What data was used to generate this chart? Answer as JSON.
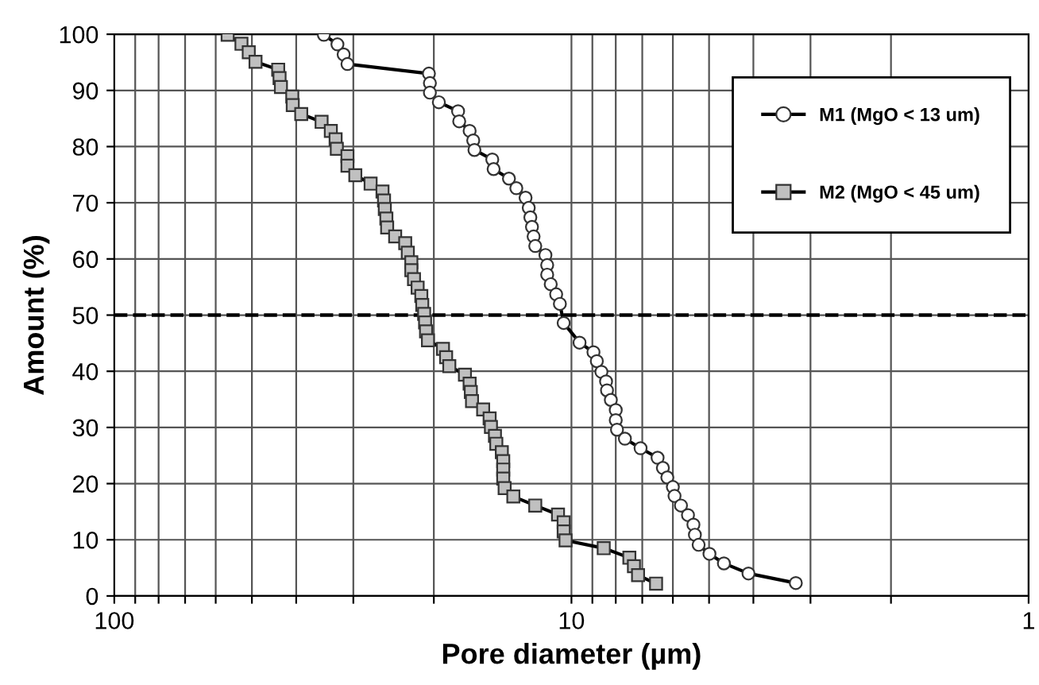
{
  "chart_data": {
    "type": "line",
    "xlabel": "Pore diameter (µm)",
    "ylabel": "Amount (%)",
    "log": "x",
    "xlim": [
      100,
      1
    ],
    "ylim": [
      0,
      100
    ],
    "xticks": [
      100,
      {
        "value": 90,
        "label": null
      },
      {
        "value": 80,
        "label": null
      },
      {
        "value": 70,
        "label": null
      },
      {
        "value": 60,
        "label": null
      },
      {
        "value": 50,
        "label": null
      },
      {
        "value": 40,
        "label": null
      },
      {
        "value": 30,
        "label": null
      },
      {
        "value": 20,
        "label": null
      },
      10,
      {
        "value": 9,
        "label": null
      },
      {
        "value": 8,
        "label": null
      },
      {
        "value": 7,
        "label": null
      },
      {
        "value": 6,
        "label": null
      },
      {
        "value": 5,
        "label": null
      },
      {
        "value": 4,
        "label": null
      },
      {
        "value": 3,
        "label": null
      },
      {
        "value": 2,
        "label": null
      },
      1
    ],
    "yticks": [
      0,
      10,
      20,
      30,
      40,
      50,
      60,
      70,
      80,
      90,
      100
    ],
    "grid": true,
    "legend": "top right",
    "ref_lines": [
      {
        "axis": "y",
        "value": 50,
        "line_style": "dashed",
        "color": "#000000"
      }
    ],
    "series": [
      {
        "name": "M1 (MgO < 13 um)",
        "color": "#000000",
        "colors": [
          "#ffffff",
          "#ffffff",
          "#ffffff",
          "#ffffff",
          "#ffffff",
          "#ffffff",
          "#ffffff",
          "#ffffff",
          "#ffffff",
          "#ffffff",
          "#ffffff",
          "#ffffff",
          "#ffffff",
          "#ffffff",
          "#ffffff",
          "#ffffff",
          "#ffffff",
          "#ffffff",
          "#ffffff",
          "#ffffff",
          "#ffffff",
          "#ffffff",
          "#ffffff",
          "#ffffff",
          "#ffffff",
          "#ffffff",
          "#ffffff",
          "#ffffff",
          "#ffffff",
          "#ffffff",
          "#ffffff",
          "#ffffff",
          "#ffffff",
          "#ffffff",
          "#ffffff",
          "#ffffff",
          "#ffffff",
          "#ffffff",
          "#ffffff",
          "#ffffff",
          "#ffffff",
          "#ffffff",
          "#ffffff",
          "#ffffff",
          "#ffffff",
          "#ffffff",
          "#ffffff",
          "#ffffff",
          "#ffffff",
          "#ffffff",
          "#ffffff",
          "#ffffff",
          "#ffffff",
          "#ffffff",
          "#ffffff",
          "#ffffff"
        ],
        "marker": "circle",
        "x": [
          34.8,
          32.5,
          31.5,
          30.9,
          20.5,
          20.4,
          20.4,
          19.5,
          17.7,
          17.6,
          16.7,
          16.4,
          16.3,
          14.9,
          14.8,
          13.7,
          13.2,
          12.6,
          12.4,
          12.3,
          12.2,
          12.1,
          12.0,
          11.4,
          11.3,
          11.3,
          11.1,
          10.8,
          10.6,
          10.4,
          9.6,
          8.95,
          8.8,
          8.6,
          8.4,
          8.36,
          8.2,
          8.0,
          8.0,
          7.95,
          7.64,
          7.06,
          6.48,
          6.31,
          6.17,
          6.0,
          5.95,
          5.76,
          5.56,
          5.41,
          5.37,
          5.27,
          4.99,
          4.64,
          4.1,
          3.23
        ],
        "values": [
          99.9,
          98.2,
          96.4,
          94.7,
          93.0,
          91.3,
          89.6,
          87.9,
          86.3,
          84.5,
          82.8,
          81.1,
          79.4,
          77.7,
          76.0,
          74.3,
          72.6,
          70.9,
          69.1,
          67.4,
          65.7,
          64.0,
          62.3,
          60.7,
          58.9,
          57.2,
          55.5,
          53.7,
          52.0,
          48.6,
          45.1,
          43.4,
          41.8,
          39.9,
          38.2,
          36.6,
          34.9,
          33.1,
          31.3,
          29.6,
          28.0,
          26.3,
          24.6,
          22.8,
          21.1,
          19.4,
          17.8,
          16.1,
          14.4,
          12.7,
          10.9,
          9.1,
          7.5,
          5.8,
          4.0,
          2.3
        ]
      },
      {
        "name": "M2 (MgO < 45 um)",
        "color": "#000000",
        "colors": [
          "#c0c0c0",
          "#c0c0c0",
          "#c0c0c0",
          "#c0c0c0",
          "#c0c0c0",
          "#c0c0c0",
          "#c0c0c0",
          "#c0c0c0",
          "#c0c0c0",
          "#c0c0c0",
          "#c0c0c0",
          "#c0c0c0",
          "#c0c0c0",
          "#c0c0c0",
          "#c0c0c0",
          "#c0c0c0",
          "#c0c0c0",
          "#c0c0c0",
          "#c0c0c0",
          "#c0c0c0",
          "#c0c0c0",
          "#c0c0c0",
          "#c0c0c0",
          "#c0c0c0",
          "#c0c0c0",
          "#c0c0c0",
          "#c0c0c0",
          "#c0c0c0",
          "#c0c0c0",
          "#c0c0c0",
          "#c0c0c0",
          "#c0c0c0",
          "#c0c0c0",
          "#c0c0c0",
          "#c0c0c0",
          "#c0c0c0",
          "#c0c0c0",
          "#c0c0c0",
          "#c0c0c0",
          "#c0c0c0",
          "#c0c0c0",
          "#c0c0c0",
          "#c0c0c0",
          "#c0c0c0",
          "#c0c0c0",
          "#c0c0c0",
          "#c0c0c0",
          "#c0c0c0",
          "#c0c0c0",
          "#c0c0c0",
          "#c0c0c0",
          "#c0c0c0",
          "#c0c0c0",
          "#c0c0c0",
          "#c0c0c0",
          "#c0c0c0",
          "#c0c0c0",
          "#c0c0c0",
          "#c0c0c0",
          "#c0c0c0",
          "#c0c0c0",
          "#c0c0c0",
          "#c0c0c0",
          "#c0c0c0"
        ],
        "marker": "square",
        "x": [
          56.5,
          52.7,
          50.8,
          49.1,
          43.8,
          43.5,
          43.2,
          40.8,
          40.7,
          39.0,
          35.2,
          33.6,
          32.8,
          32.6,
          30.9,
          30.9,
          29.7,
          27.5,
          25.9,
          25.7,
          25.6,
          25.4,
          25.3,
          24.3,
          23.1,
          22.8,
          22.4,
          22.4,
          22.1,
          21.7,
          21.3,
          21.2,
          21.0,
          20.9,
          20.8,
          20.6,
          19.1,
          18.8,
          18.5,
          17.1,
          16.7,
          16.6,
          16.5,
          15.6,
          15.1,
          15.0,
          14.7,
          14.6,
          14.2,
          14.1,
          14.1,
          14.1,
          14.0,
          13.4,
          12.0,
          10.7,
          10.4,
          10.4,
          10.3,
          8.5,
          7.47,
          7.3,
          7.15,
          6.53
        ],
        "values": [
          99.9,
          98.3,
          96.8,
          95.1,
          93.7,
          92.2,
          90.6,
          88.9,
          87.4,
          85.8,
          84.4,
          82.8,
          81.3,
          79.6,
          78.3,
          76.6,
          74.9,
          73.4,
          72.0,
          70.4,
          68.9,
          67.2,
          65.6,
          64.0,
          62.8,
          61.1,
          59.4,
          58.0,
          56.4,
          54.9,
          53.4,
          51.8,
          50.2,
          48.7,
          47.1,
          45.5,
          44.0,
          42.5,
          40.9,
          39.4,
          37.8,
          36.3,
          34.7,
          33.2,
          31.6,
          30.1,
          28.5,
          27.1,
          25.6,
          24.0,
          22.5,
          20.9,
          19.2,
          17.7,
          16.1,
          14.5,
          13.1,
          11.5,
          9.9,
          8.5,
          6.8,
          5.3,
          3.7,
          2.2
        ]
      }
    ]
  }
}
